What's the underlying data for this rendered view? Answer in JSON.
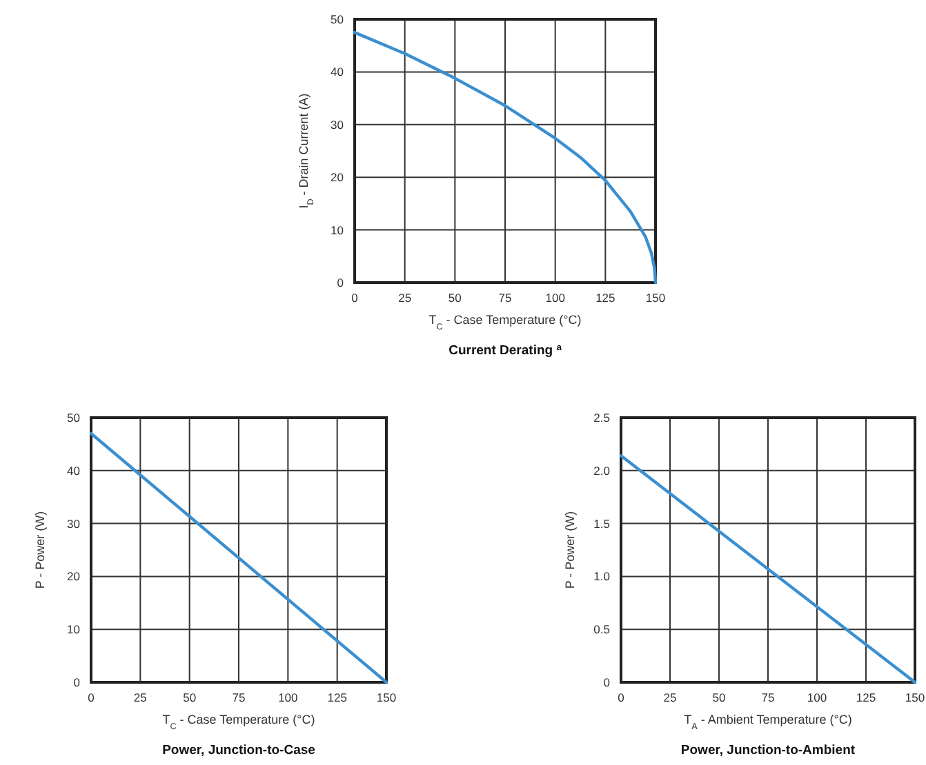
{
  "chart_data": [
    {
      "type": "line",
      "title": "Current Derating $^{a}$",
      "xlabel": "T$_{C}$ - Case Temperature (°C)",
      "ylabel": "I$_{D}$ - Drain Current (A)",
      "x": [
        0,
        25,
        50,
        75,
        100,
        112.5,
        125,
        137.5,
        145,
        148,
        149.5,
        150
      ],
      "series": [
        {
          "color": "#3a8fd0",
          "values": [
            47.5,
            43.5,
            38.8,
            33.6,
            27.4,
            23.8,
            19.4,
            13.5,
            8.7,
            5.5,
            2.7,
            0
          ]
        }
      ],
      "xlim": [
        0,
        150
      ],
      "xticks": [
        0,
        25,
        50,
        75,
        100,
        125,
        150
      ],
      "ylim": [
        0,
        50
      ],
      "yticks": [
        0,
        10,
        20,
        30,
        40,
        50
      ],
      "grid": true
    },
    {
      "type": "line",
      "title": "Power, Junction-to-Case",
      "xlabel": "T$_{C}$ - Case Temperature (°C)",
      "ylabel": "P - Power (W)",
      "x": [
        0,
        150
      ],
      "series": [
        {
          "color": "#3a8fd0",
          "values": [
            47,
            0
          ]
        }
      ],
      "xlim": [
        0,
        150
      ],
      "xticks": [
        0,
        25,
        50,
        75,
        100,
        125,
        150
      ],
      "ylim": [
        0,
        50
      ],
      "yticks": [
        0,
        10,
        20,
        30,
        40,
        50
      ],
      "grid": true
    },
    {
      "type": "line",
      "title": "Power, Junction-to-Ambient",
      "xlabel": "T$_{A}$ - Ambient Temperature (°C)",
      "ylabel": "P - Power (W)",
      "x": [
        0,
        150
      ],
      "series": [
        {
          "color": "#3a8fd0",
          "values": [
            2.14,
            0
          ]
        }
      ],
      "xlim": [
        0,
        150
      ],
      "xticks": [
        0,
        25,
        50,
        75,
        100,
        125,
        150
      ],
      "ylim": [
        0,
        2.5
      ],
      "yticks": [
        0,
        {
          "value": 0.5,
          "label": "0.5"
        },
        {
          "value": 1,
          "label": "1.0"
        },
        {
          "value": 1.5,
          "label": "1.5"
        },
        {
          "value": 2,
          "label": "2.0"
        },
        {
          "value": 2.5,
          "label": "2.5"
        }
      ],
      "grid": true
    }
  ]
}
